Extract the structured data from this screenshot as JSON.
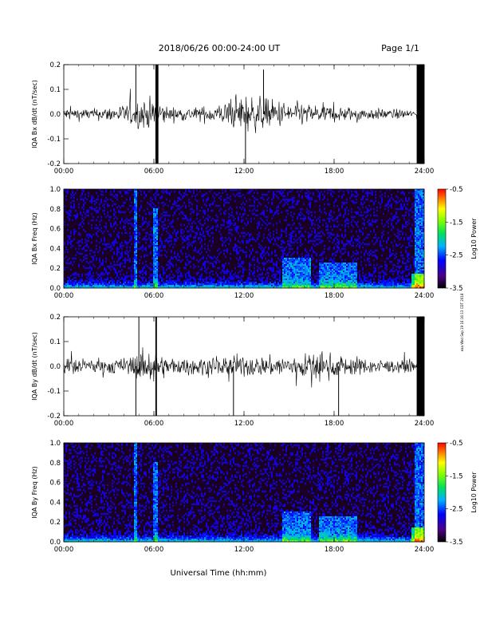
{
  "header": {
    "title": "2018/06/26  00:00-24:00 UT",
    "page": "Page 1/1"
  },
  "stamp": "eaa Wed Sep 19 16:16:13 CDT 2018",
  "xlabel": "Universal Time (hh:mm)",
  "colorbar_label": "Log10 Power",
  "chart_data": [
    {
      "type": "line",
      "ylabel": "IQA Bx dB/dt (nT/sec)",
      "x_range_hours": [
        0,
        24
      ],
      "x_ticks": [
        "00:00",
        "06:00",
        "12:00",
        "18:00",
        "24:00"
      ],
      "ylim": [
        -0.2,
        0.2
      ],
      "y_ticks": [
        "-0.2",
        "-0.1",
        "0.0",
        "0.1",
        "0.2"
      ],
      "activity_profile": [
        {
          "hour": 0,
          "amp": 0.05
        },
        {
          "hour": 2,
          "amp": 0.04
        },
        {
          "hour": 4,
          "amp": 0.07
        },
        {
          "hour": 5,
          "amp": 0.1
        },
        {
          "hour": 6,
          "amp": 0.12
        },
        {
          "hour": 7,
          "amp": 0.05
        },
        {
          "hour": 9,
          "amp": 0.05
        },
        {
          "hour": 11,
          "amp": 0.09
        },
        {
          "hour": 12,
          "amp": 0.15
        },
        {
          "hour": 13,
          "amp": 0.12
        },
        {
          "hour": 15,
          "amp": 0.09
        },
        {
          "hour": 18,
          "amp": 0.06
        },
        {
          "hour": 21,
          "amp": 0.04
        },
        {
          "hour": 23.3,
          "amp": 0.03
        }
      ],
      "spikes": [
        {
          "hour": 4.8,
          "value": 0.2
        },
        {
          "hour": 6.15,
          "value": -0.2
        },
        {
          "hour": 12.1,
          "value": -0.2
        },
        {
          "hour": 13.3,
          "value": 0.18
        }
      ],
      "saturated_spans": [
        [
          6.1,
          6.3
        ],
        [
          23.5,
          24.0
        ]
      ]
    },
    {
      "type": "heatmap",
      "ylabel": "IQA Bx Freq (Hz)",
      "x_range_hours": [
        0,
        24
      ],
      "x_ticks": [
        "00:00",
        "06:00",
        "12:00",
        "18:00",
        "24:00"
      ],
      "ylim": [
        0,
        1.0
      ],
      "y_ticks": [
        "0.0",
        "0.2",
        "0.4",
        "0.6",
        "0.8",
        "1.0"
      ],
      "colorbar": {
        "range": [
          -3.5,
          -0.5
        ],
        "ticks": [
          "-0.5",
          "-1.5",
          "-2.5",
          "-3.5"
        ]
      },
      "features": [
        {
          "hours": [
            4.7,
            4.9
          ],
          "f_max": 1.0
        },
        {
          "hours": [
            5.9,
            6.3
          ],
          "f_max": 0.8
        },
        {
          "hours": [
            14.5,
            16.5
          ],
          "f_max": 0.3
        },
        {
          "hours": [
            17.0,
            19.5
          ],
          "f_max": 0.25
        },
        {
          "hours": [
            23.4,
            24.0
          ],
          "f_max": 1.0
        }
      ]
    },
    {
      "type": "line",
      "ylabel": "IQA By dB/dt (nT/sec)",
      "x_range_hours": [
        0,
        24
      ],
      "x_ticks": [
        "00:00",
        "06:00",
        "12:00",
        "18:00",
        "24:00"
      ],
      "ylim": [
        -0.2,
        0.2
      ],
      "y_ticks": [
        "-0.2",
        "-0.1",
        "0.0",
        "0.1",
        "0.2"
      ],
      "activity_profile": [
        {
          "hour": 0,
          "amp": 0.06
        },
        {
          "hour": 2,
          "amp": 0.05
        },
        {
          "hour": 4,
          "amp": 0.06
        },
        {
          "hour": 5,
          "amp": 0.1
        },
        {
          "hour": 6,
          "amp": 0.12
        },
        {
          "hour": 7,
          "amp": 0.06
        },
        {
          "hour": 9,
          "amp": 0.06
        },
        {
          "hour": 11,
          "amp": 0.08
        },
        {
          "hour": 12,
          "amp": 0.08
        },
        {
          "hour": 13,
          "amp": 0.07
        },
        {
          "hour": 15,
          "amp": 0.08
        },
        {
          "hour": 17,
          "amp": 0.1
        },
        {
          "hour": 19,
          "amp": 0.07
        },
        {
          "hour": 21,
          "amp": 0.05
        },
        {
          "hour": 23.3,
          "amp": 0.04
        }
      ],
      "spikes": [
        {
          "hour": 4.8,
          "value": -0.2
        },
        {
          "hour": 5.0,
          "value": 0.2
        },
        {
          "hour": 6.15,
          "value": 0.2
        },
        {
          "hour": 11.3,
          "value": -0.2
        },
        {
          "hour": 18.3,
          "value": -0.2
        }
      ],
      "saturated_spans": [
        [
          6.1,
          6.2
        ],
        [
          23.5,
          24.0
        ]
      ]
    },
    {
      "type": "heatmap",
      "ylabel": "IQA By Freq (Hz)",
      "x_range_hours": [
        0,
        24
      ],
      "x_ticks": [
        "00:00",
        "06:00",
        "12:00",
        "18:00",
        "24:00"
      ],
      "ylim": [
        0,
        1.0
      ],
      "y_ticks": [
        "0.0",
        "0.2",
        "0.4",
        "0.6",
        "0.8",
        "1.0"
      ],
      "colorbar": {
        "range": [
          -3.5,
          -0.5
        ],
        "ticks": [
          "-0.5",
          "-1.5",
          "-2.5",
          "-3.5"
        ]
      },
      "features": [
        {
          "hours": [
            4.7,
            4.9
          ],
          "f_max": 1.0
        },
        {
          "hours": [
            5.9,
            6.3
          ],
          "f_max": 0.8
        },
        {
          "hours": [
            14.5,
            16.5
          ],
          "f_max": 0.3
        },
        {
          "hours": [
            17.0,
            19.5
          ],
          "f_max": 0.25
        },
        {
          "hours": [
            23.4,
            24.0
          ],
          "f_max": 1.0
        }
      ]
    }
  ]
}
